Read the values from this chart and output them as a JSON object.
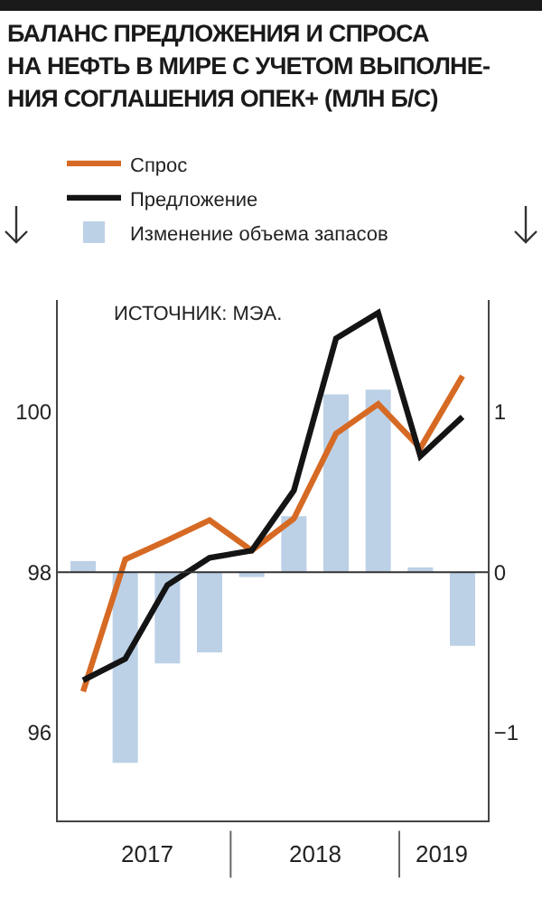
{
  "chart_data": {
    "type": "bar",
    "title": "БАЛАНС ПРЕДЛОЖЕНИЯ И СПРОСА\nНА НЕФТЬ В МИРЕ С УЧЕТОМ ВЫПОЛНЕ-\nНИЯ СОГЛАШЕНИЯ ОПЕК+ (МЛН Б/С)",
    "annotations": [
      "ИСТОЧНИК: МЭА.",
      "2017",
      "2018",
      "2019"
    ],
    "categories": [
      null,
      null,
      null,
      null,
      null,
      null,
      null,
      null,
      null,
      null
    ],
    "series": [
      {
        "name": "Спрос",
        "type": "line",
        "color": "#d66a24",
        "values": [
          96.51,
          98.16,
          98.4,
          98.65,
          98.27,
          98.67,
          99.73,
          100.1,
          99.55,
          100.45
        ]
      },
      {
        "name": "Предложение",
        "type": "line",
        "color": "#141414",
        "values": [
          96.65,
          96.92,
          97.84,
          98.18,
          98.27,
          99.02,
          100.92,
          101.24,
          99.45,
          99.94
        ]
      },
      {
        "name": "Изменение объема запасов",
        "axis": "y2",
        "color": "#bcd1e6",
        "values": [
          0.07,
          -1.19,
          -0.57,
          -0.5,
          -0.03,
          0.35,
          1.11,
          1.14,
          0.03,
          -0.46
        ]
      }
    ],
    "ylim": [
      94.9,
      101.4
    ],
    "yticks": [
      96,
      98,
      100
    ],
    "y2lim": [
      -1.55,
      1.7
    ],
    "y2ticks": [
      -1,
      0,
      1
    ],
    "ref_lines": [
      {
        "axis": "y2",
        "value": 0,
        "color": "#333333"
      }
    ],
    "grid": false,
    "legend": "top",
    "marker": "none",
    "line_style": "solid"
  }
}
